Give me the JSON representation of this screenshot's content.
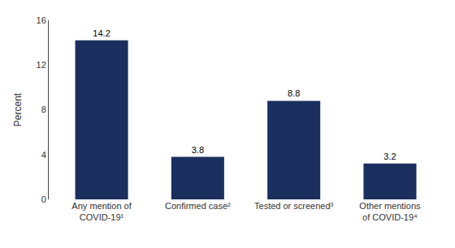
{
  "chart_data": {
    "type": "bar",
    "categories": [
      "Any mention of\nCOVID-19¹",
      "Confirmed case²",
      "Tested or screened³",
      "Other mentions\nof COVID-19⁴"
    ],
    "values": [
      14.2,
      3.8,
      8.8,
      3.2
    ],
    "color": "#1b2f5e",
    "ylabel": "Percent",
    "ylim": [
      0,
      16
    ],
    "yticks": [
      0,
      4,
      8,
      12,
      16
    ],
    "data_labels": true,
    "grid": false
  }
}
